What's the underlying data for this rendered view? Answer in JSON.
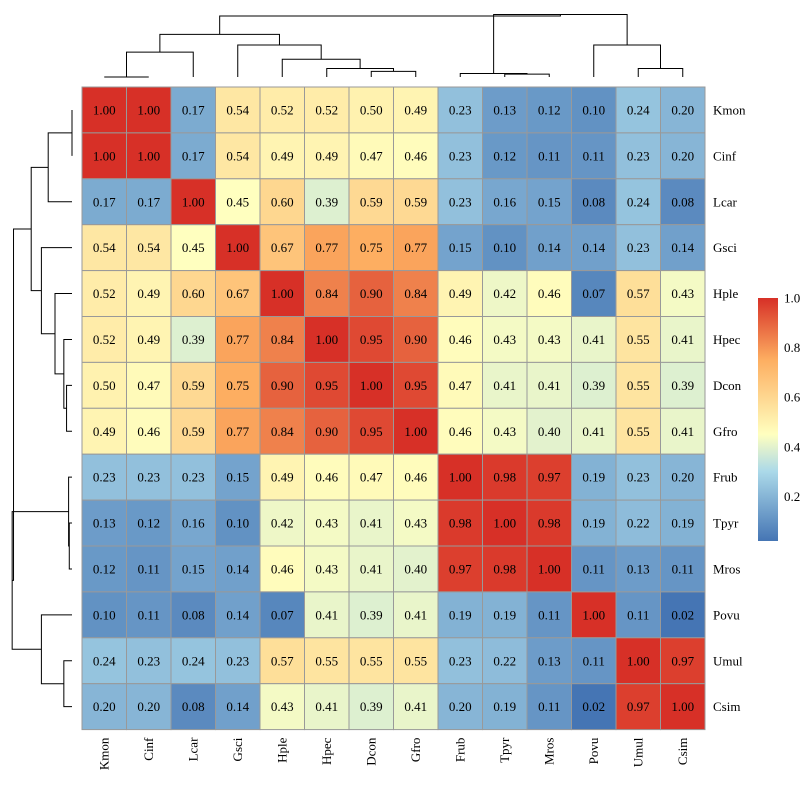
{
  "chart_data": {
    "type": "heatmap",
    "title": "",
    "xlabel": "",
    "ylabel": "",
    "rows": [
      "Kmon",
      "Cinf",
      "Lcar",
      "Gsci",
      "Hple",
      "Hpec",
      "Dcon",
      "Gfro",
      "Frub",
      "Tpyr",
      "Mros",
      "Povu",
      "Umul",
      "Csim"
    ],
    "columns": [
      "Kmon",
      "Cinf",
      "Lcar",
      "Gsci",
      "Hple",
      "Hpec",
      "Dcon",
      "Gfro",
      "Frub",
      "Tpyr",
      "Mros",
      "Povu",
      "Umul",
      "Csim"
    ],
    "values": [
      [
        "1.00",
        "1.00",
        "0.17",
        "0.54",
        "0.52",
        "0.52",
        "0.50",
        "0.49",
        "0.23",
        "0.13",
        "0.12",
        "0.10",
        "0.24",
        "0.20"
      ],
      [
        "1.00",
        "1.00",
        "0.17",
        "0.54",
        "0.49",
        "0.49",
        "0.47",
        "0.46",
        "0.23",
        "0.12",
        "0.11",
        "0.11",
        "0.23",
        "0.20"
      ],
      [
        "0.17",
        "0.17",
        "1.00",
        "0.45",
        "0.60",
        "0.39",
        "0.59",
        "0.59",
        "0.23",
        "0.16",
        "0.15",
        "0.08",
        "0.24",
        "0.08"
      ],
      [
        "0.54",
        "0.54",
        "0.45",
        "1.00",
        "0.67",
        "0.77",
        "0.75",
        "0.77",
        "0.15",
        "0.10",
        "0.14",
        "0.14",
        "0.23",
        "0.14"
      ],
      [
        "0.52",
        "0.49",
        "0.60",
        "0.67",
        "1.00",
        "0.84",
        "0.90",
        "0.84",
        "0.49",
        "0.42",
        "0.46",
        "0.07",
        "0.57",
        "0.43"
      ],
      [
        "0.52",
        "0.49",
        "0.39",
        "0.77",
        "0.84",
        "1.00",
        "0.95",
        "0.90",
        "0.46",
        "0.43",
        "0.43",
        "0.41",
        "0.55",
        "0.41"
      ],
      [
        "0.50",
        "0.47",
        "0.59",
        "0.75",
        "0.90",
        "0.95",
        "1.00",
        "0.95",
        "0.47",
        "0.41",
        "0.41",
        "0.39",
        "0.55",
        "0.39"
      ],
      [
        "0.49",
        "0.46",
        "0.59",
        "0.77",
        "0.84",
        "0.90",
        "0.95",
        "1.00",
        "0.46",
        "0.43",
        "0.40",
        "0.41",
        "0.55",
        "0.41"
      ],
      [
        "0.23",
        "0.23",
        "0.23",
        "0.15",
        "0.49",
        "0.46",
        "0.47",
        "0.46",
        "1.00",
        "0.98",
        "0.97",
        "0.19",
        "0.23",
        "0.20"
      ],
      [
        "0.13",
        "0.12",
        "0.16",
        "0.10",
        "0.42",
        "0.43",
        "0.41",
        "0.43",
        "0.98",
        "1.00",
        "0.98",
        "0.19",
        "0.22",
        "0.19"
      ],
      [
        "0.12",
        "0.11",
        "0.15",
        "0.14",
        "0.46",
        "0.43",
        "0.41",
        "0.40",
        "0.97",
        "0.98",
        "1.00",
        "0.11",
        "0.13",
        "0.11"
      ],
      [
        "0.10",
        "0.11",
        "0.08",
        "0.14",
        "0.07",
        "0.41",
        "0.39",
        "0.41",
        "0.19",
        "0.19",
        "0.11",
        "1.00",
        "0.11",
        "0.02"
      ],
      [
        "0.24",
        "0.23",
        "0.24",
        "0.23",
        "0.57",
        "0.55",
        "0.55",
        "0.55",
        "0.23",
        "0.22",
        "0.13",
        "0.11",
        "1.00",
        "0.97"
      ],
      [
        "0.20",
        "0.20",
        "0.08",
        "0.14",
        "0.43",
        "0.41",
        "0.39",
        "0.41",
        "0.20",
        "0.19",
        "0.11",
        "0.02",
        "0.97",
        "1.00"
      ]
    ],
    "colorbar": {
      "ticks": [
        "1.0",
        "0.8",
        "0.6",
        "0.4",
        "0.2"
      ],
      "range": [
        0.02,
        1.0
      ]
    },
    "colors": {
      "low": "#4575b4",
      "mid_low": "#abd9e9",
      "mid": "#ffffbf",
      "mid_high": "#fdae61",
      "high": "#d73027",
      "grid": "#999999"
    },
    "grid": true,
    "legend_position": "right"
  }
}
